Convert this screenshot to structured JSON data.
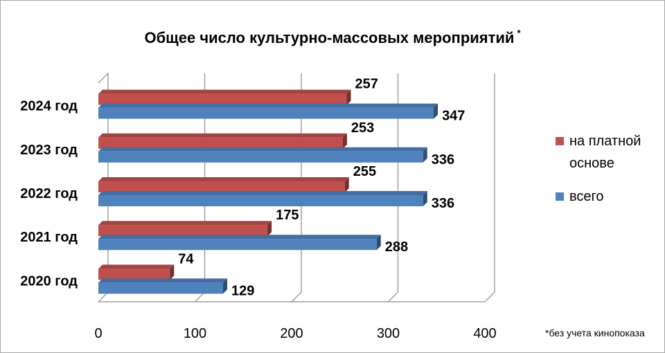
{
  "chart_data": {
    "type": "bar",
    "orientation": "horizontal",
    "title": "Общее число культурно-массовых мероприятий",
    "title_mark": "*",
    "categories": [
      "2024 год",
      "2023 год",
      "2022 год",
      "2021 год",
      "2020 год"
    ],
    "series": [
      {
        "name": "на платной основе",
        "name_lines": [
          "на платной",
          "основе"
        ],
        "color": "#c0504d",
        "values": [
          257,
          253,
          255,
          175,
          74
        ]
      },
      {
        "name": "всего",
        "name_lines": [
          "всего"
        ],
        "color": "#4f81bd",
        "values": [
          347,
          336,
          336,
          288,
          129
        ]
      }
    ],
    "xlim": [
      0,
      400
    ],
    "xticks": [
      0,
      100,
      200,
      300,
      400
    ],
    "grid": true,
    "legend_position": "right",
    "footnote": "*без учета кинопоказа"
  }
}
